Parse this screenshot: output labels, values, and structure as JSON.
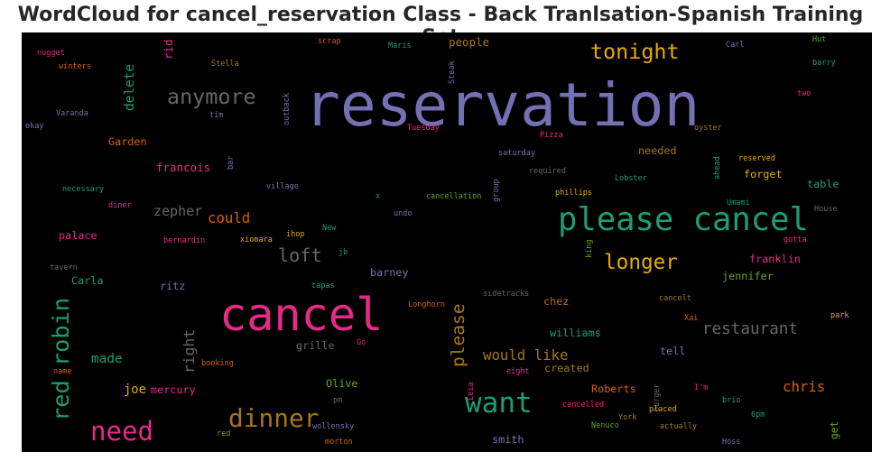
{
  "title": "WordCloud for cancel_reservation Class - Back Tranlsation-Spanish Training Set",
  "chart_data": {
    "type": "wordcloud",
    "words": [
      {
        "text": "reservation",
        "weight": 100,
        "color": "#7570b3",
        "vertical": false
      },
      {
        "text": "cancel",
        "weight": 75,
        "color": "#e7298a",
        "vertical": false
      },
      {
        "text": "please cancel",
        "weight": 52,
        "color": "#1b9e77",
        "vertical": false
      },
      {
        "text": "want",
        "weight": 45,
        "color": "#1b9e77",
        "vertical": false
      },
      {
        "text": "need",
        "weight": 42,
        "color": "#e7298a",
        "vertical": false
      },
      {
        "text": "dinner",
        "weight": 40,
        "color": "#a6761d",
        "vertical": false
      },
      {
        "text": "red robin",
        "weight": 36,
        "color": "#1b9e77",
        "vertical": true
      },
      {
        "text": "anymore",
        "weight": 33,
        "color": "#666666",
        "vertical": false
      },
      {
        "text": "tonight",
        "weight": 33,
        "color": "#e6ab02",
        "vertical": false
      },
      {
        "text": "longer",
        "weight": 32,
        "color": "#e6ab02",
        "vertical": false
      },
      {
        "text": "loft",
        "weight": 28,
        "color": "#666666",
        "vertical": false
      },
      {
        "text": "please",
        "weight": 27,
        "color": "#a6761d",
        "vertical": true
      },
      {
        "text": "restaurant",
        "weight": 24,
        "color": "#666666",
        "vertical": false
      },
      {
        "text": "right",
        "weight": 22,
        "color": "#666666",
        "vertical": true
      },
      {
        "text": "would like",
        "weight": 21,
        "color": "#a6761d",
        "vertical": false
      },
      {
        "text": "could",
        "weight": 21,
        "color": "#d95f02",
        "vertical": false
      },
      {
        "text": "chris",
        "weight": 21,
        "color": "#d95f02",
        "vertical": false
      },
      {
        "text": "zepher",
        "weight": 20,
        "color": "#666666",
        "vertical": false
      },
      {
        "text": "delete",
        "weight": 19,
        "color": "#1b9e77",
        "vertical": true
      },
      {
        "text": "made",
        "weight": 19,
        "color": "#1b9e77",
        "vertical": false
      },
      {
        "text": "joe",
        "weight": 18,
        "color": "#e6ab02",
        "vertical": false
      },
      {
        "text": "people",
        "weight": 16,
        "color": "#a6761d",
        "vertical": false
      },
      {
        "text": "rid",
        "weight": 16,
        "color": "#e7298a",
        "vertical": true
      },
      {
        "text": "Garden",
        "weight": 15,
        "color": "#d95f02",
        "vertical": false
      },
      {
        "text": "francois",
        "weight": 16,
        "color": "#e7298a",
        "vertical": false
      },
      {
        "text": "palace",
        "weight": 15,
        "color": "#e7298a",
        "vertical": false
      },
      {
        "text": "ritz",
        "weight": 15,
        "color": "#7570b3",
        "vertical": false
      },
      {
        "text": "Carla",
        "weight": 15,
        "color": "#1b9e77",
        "vertical": false
      },
      {
        "text": "mercury",
        "weight": 15,
        "color": "#e7298a",
        "vertical": false
      },
      {
        "text": "barney",
        "weight": 15,
        "color": "#7570b3",
        "vertical": false
      },
      {
        "text": "grille",
        "weight": 15,
        "color": "#666666",
        "vertical": false
      },
      {
        "text": "Olive",
        "weight": 15,
        "color": "#66a61e",
        "vertical": false
      },
      {
        "text": "smith",
        "weight": 15,
        "color": "#7570b3",
        "vertical": false
      },
      {
        "text": "needed",
        "weight": 15,
        "color": "#a6761d",
        "vertical": false
      },
      {
        "text": "forget",
        "weight": 15,
        "color": "#e6ab02",
        "vertical": false
      },
      {
        "text": "table",
        "weight": 15,
        "color": "#1b9e77",
        "vertical": false
      },
      {
        "text": "franklin",
        "weight": 15,
        "color": "#e7298a",
        "vertical": false
      },
      {
        "text": "jennifer",
        "weight": 15,
        "color": "#66a61e",
        "vertical": false
      },
      {
        "text": "chez",
        "weight": 15,
        "color": "#a6761d",
        "vertical": false
      },
      {
        "text": "williams",
        "weight": 15,
        "color": "#1b9e77",
        "vertical": false
      },
      {
        "text": "tell",
        "weight": 15,
        "color": "#7570b3",
        "vertical": false
      },
      {
        "text": "created",
        "weight": 15,
        "color": "#a6761d",
        "vertical": false
      },
      {
        "text": "Roberts",
        "weight": 15,
        "color": "#d95f02",
        "vertical": false
      },
      {
        "text": "get",
        "weight": 14,
        "color": "#66a61e",
        "vertical": true
      },
      {
        "text": "nugget",
        "weight": 9,
        "color": "#e7298a",
        "vertical": false
      },
      {
        "text": "winters",
        "weight": 9,
        "color": "#d95f02",
        "vertical": false
      },
      {
        "text": "Varanda",
        "weight": 9,
        "color": "#7570b3",
        "vertical": false
      },
      {
        "text": "okay",
        "weight": 9,
        "color": "#7570b3",
        "vertical": false
      },
      {
        "text": "scrap",
        "weight": 9,
        "color": "#d95f02",
        "vertical": false
      },
      {
        "text": "Maris",
        "weight": 9,
        "color": "#1b9e77",
        "vertical": false
      },
      {
        "text": "Stella",
        "weight": 9,
        "color": "#a6761d",
        "vertical": false
      },
      {
        "text": "tim",
        "weight": 9,
        "color": "#7570b3",
        "vertical": false
      },
      {
        "text": "outback",
        "weight": 9,
        "color": "#7570b3",
        "vertical": true
      },
      {
        "text": "Steak",
        "weight": 9,
        "color": "#7570b3",
        "vertical": true
      },
      {
        "text": "Tuesday",
        "weight": 9,
        "color": "#e7298a",
        "vertical": false
      },
      {
        "text": "Pizza",
        "weight": 9,
        "color": "#e7298a",
        "vertical": false
      },
      {
        "text": "oyster",
        "weight": 9,
        "color": "#a6761d",
        "vertical": false
      },
      {
        "text": "Carl",
        "weight": 9,
        "color": "#7570b3",
        "vertical": false
      },
      {
        "text": "Hut",
        "weight": 9,
        "color": "#66a61e",
        "vertical": false
      },
      {
        "text": "barry",
        "weight": 9,
        "color": "#1b9e77",
        "vertical": false
      },
      {
        "text": "two",
        "weight": 9,
        "color": "#e7298a",
        "vertical": false
      },
      {
        "text": "necessary",
        "weight": 9,
        "color": "#1b9e77",
        "vertical": false
      },
      {
        "text": "diner",
        "weight": 9,
        "color": "#e7298a",
        "vertical": false
      },
      {
        "text": "bar",
        "weight": 9,
        "color": "#7570b3",
        "vertical": true
      },
      {
        "text": "village",
        "weight": 9,
        "color": "#7570b3",
        "vertical": false
      },
      {
        "text": "saturday",
        "weight": 9,
        "color": "#7570b3",
        "vertical": false
      },
      {
        "text": "required",
        "weight": 9,
        "color": "#666666",
        "vertical": false
      },
      {
        "text": "x",
        "weight": 9,
        "color": "#1b9e77",
        "vertical": false
      },
      {
        "text": "cancellation",
        "weight": 9,
        "color": "#66a61e",
        "vertical": false
      },
      {
        "text": "group",
        "weight": 9,
        "color": "#7570b3",
        "vertical": true
      },
      {
        "text": "phillips",
        "weight": 9,
        "color": "#e6ab02",
        "vertical": false
      },
      {
        "text": "Lobster",
        "weight": 9,
        "color": "#1b9e77",
        "vertical": false
      },
      {
        "text": "ahead",
        "weight": 9,
        "color": "#1b9e77",
        "vertical": true
      },
      {
        "text": "reserved",
        "weight": 9,
        "color": "#e6ab02",
        "vertical": false
      },
      {
        "text": "Umami",
        "weight": 9,
        "color": "#1b9e77",
        "vertical": false
      },
      {
        "text": "House",
        "weight": 9,
        "color": "#666666",
        "vertical": false
      },
      {
        "text": "undo",
        "weight": 9,
        "color": "#7570b3",
        "vertical": false
      },
      {
        "text": "bernardin",
        "weight": 9,
        "color": "#e7298a",
        "vertical": false
      },
      {
        "text": "xiomara",
        "weight": 9,
        "color": "#e6ab02",
        "vertical": false
      },
      {
        "text": "ihop",
        "weight": 9,
        "color": "#e6ab02",
        "vertical": false
      },
      {
        "text": "New",
        "weight": 9,
        "color": "#1b9e77",
        "vertical": false
      },
      {
        "text": "jb",
        "weight": 9,
        "color": "#1b9e77",
        "vertical": false
      },
      {
        "text": "tavern",
        "weight": 9,
        "color": "#666666",
        "vertical": false
      },
      {
        "text": "king",
        "weight": 9,
        "color": "#66a61e",
        "vertical": true
      },
      {
        "text": "gotta",
        "weight": 9,
        "color": "#e7298a",
        "vertical": false
      },
      {
        "text": "tapas",
        "weight": 9,
        "color": "#1b9e77",
        "vertical": false
      },
      {
        "text": "sidetracks",
        "weight": 9,
        "color": "#666666",
        "vertical": false
      },
      {
        "text": "Longhorn",
        "weight": 9,
        "color": "#d95f02",
        "vertical": false
      },
      {
        "text": "cancelt",
        "weight": 9,
        "color": "#a6761d",
        "vertical": false
      },
      {
        "text": "park",
        "weight": 9,
        "color": "#e6ab02",
        "vertical": false
      },
      {
        "text": "Xai",
        "weight": 9,
        "color": "#d95f02",
        "vertical": false
      },
      {
        "text": "Go",
        "weight": 9,
        "color": "#e7298a",
        "vertical": false
      },
      {
        "text": "booking",
        "weight": 9,
        "color": "#d95f02",
        "vertical": false
      },
      {
        "text": "name",
        "weight": 9,
        "color": "#d95f02",
        "vertical": false
      },
      {
        "text": "eight",
        "weight": 9,
        "color": "#e7298a",
        "vertical": false
      },
      {
        "text": "Leia",
        "weight": 9,
        "color": "#e7298a",
        "vertical": true
      },
      {
        "text": "burger",
        "weight": 9,
        "color": "#666666",
        "vertical": true
      },
      {
        "text": "I'm",
        "weight": 9,
        "color": "#e7298a",
        "vertical": false
      },
      {
        "text": "brio",
        "weight": 9,
        "color": "#1b9e77",
        "vertical": false
      },
      {
        "text": "placed",
        "weight": 9,
        "color": "#e6ab02",
        "vertical": false
      },
      {
        "text": "cancelled",
        "weight": 9,
        "color": "#e7298a",
        "vertical": false
      },
      {
        "text": "6pm",
        "weight": 9,
        "color": "#1b9e77",
        "vertical": false
      },
      {
        "text": "pm",
        "weight": 9,
        "color": "#666666",
        "vertical": false
      },
      {
        "text": "York",
        "weight": 9,
        "color": "#a6761d",
        "vertical": false
      },
      {
        "text": "Nenuco",
        "weight": 9,
        "color": "#66a61e",
        "vertical": false
      },
      {
        "text": "actually",
        "weight": 9,
        "color": "#a6761d",
        "vertical": false
      },
      {
        "text": "wollensky",
        "weight": 9,
        "color": "#7570b3",
        "vertical": false
      },
      {
        "text": "red",
        "weight": 9,
        "color": "#66a61e",
        "vertical": false
      },
      {
        "text": "morton",
        "weight": 9,
        "color": "#d95f02",
        "vertical": false
      },
      {
        "text": "Hoss",
        "weight": 9,
        "color": "#7570b3",
        "vertical": false
      }
    ]
  }
}
